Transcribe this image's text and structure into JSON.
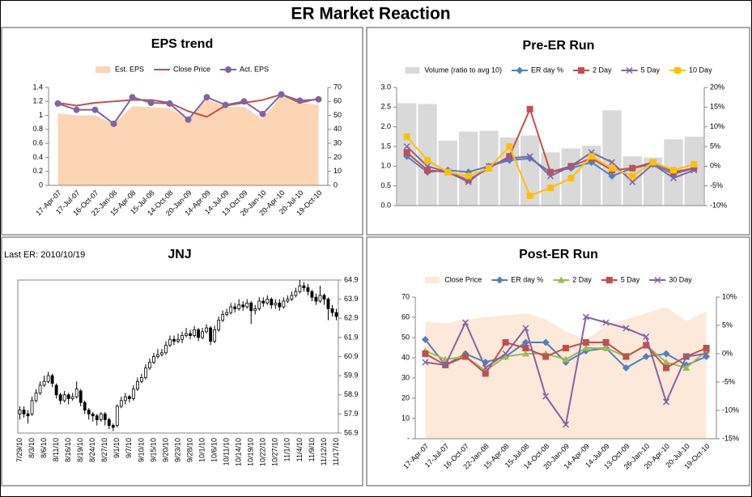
{
  "title": "ER Market Reaction",
  "chart_data": [
    {
      "type": "combo",
      "title": "EPS trend",
      "legend": "top",
      "categories": [
        "17-Apr-07",
        "17-Jul-07",
        "16-Oct-07",
        "22-Jan-08",
        "15-Apr-08",
        "15-Jul-08",
        "14-Oct-08",
        "20-Jan-09",
        "14-Apr-09",
        "14-Jul-09",
        "13-Oct-09",
        "26-Jan-10",
        "20-Apr-10",
        "20-Jul-10",
        "19-Oct-10"
      ],
      "ylim": [
        0,
        1.4
      ],
      "yticks": [
        0,
        0.2,
        0.4,
        0.6,
        0.8,
        1,
        1.2,
        1.4
      ],
      "y2lim": [
        0,
        70
      ],
      "y2ticks": [
        0,
        10,
        20,
        30,
        40,
        50,
        60,
        70
      ],
      "series": [
        {
          "name": "Est. EPS",
          "type": "area",
          "color": "#fcd5b4",
          "values": [
            1.03,
            1.0,
            1.0,
            0.88,
            1.13,
            1.12,
            1.1,
            0.95,
            1.23,
            1.13,
            1.12,
            0.95,
            1.28,
            1.18,
            1.15
          ]
        },
        {
          "name": "Close Price",
          "type": "line",
          "color": "#c0504d",
          "axis": "y2",
          "values": [
            59,
            57,
            59,
            60,
            61,
            61,
            59,
            53,
            49,
            57,
            59,
            61,
            65,
            59,
            62
          ]
        },
        {
          "name": "Act. EPS",
          "type": "line",
          "color": "#8064a2",
          "marker": "circle",
          "values": [
            1.17,
            1.08,
            1.08,
            0.88,
            1.26,
            1.18,
            1.17,
            0.94,
            1.26,
            1.15,
            1.2,
            1.02,
            1.3,
            1.21,
            1.23
          ]
        }
      ]
    },
    {
      "type": "combo",
      "title": "Pre-ER Run",
      "legend": "top",
      "ylim": [
        0,
        3
      ],
      "yticks": [
        {
          "value": 0,
          "label": "0.0"
        },
        0.5,
        {
          "value": 1,
          "label": "1.0"
        },
        1.5,
        {
          "value": 2,
          "label": "2.0"
        },
        2.5,
        {
          "value": 3,
          "label": "3.0"
        }
      ],
      "y2lim": [
        -10,
        20
      ],
      "y2ticks": [
        {
          "value": -10,
          "label": "-10%"
        },
        {
          "value": -5,
          "label": "-5%"
        },
        {
          "value": 0,
          "label": "0%"
        },
        {
          "value": 5,
          "label": "5%"
        },
        {
          "value": 10,
          "label": "10%"
        },
        {
          "value": 15,
          "label": "15%"
        },
        {
          "value": 20,
          "label": "20%"
        }
      ],
      "series": [
        {
          "name": "Volume (ratio to avg 10)",
          "type": "bar",
          "color": "#d9d9d9",
          "values": [
            2.6,
            2.58,
            1.65,
            1.88,
            1.9,
            1.73,
            1.78,
            1.35,
            1.45,
            1.52,
            2.42,
            1.25,
            1.22,
            1.68,
            1.75
          ]
        },
        {
          "name": "ER day %",
          "type": "line",
          "color": "#4f81bd",
          "marker": "diamond",
          "axis": "y2",
          "values": [
            2.5,
            -1.5,
            -1,
            -1.5,
            0,
            1.5,
            2,
            -1.5,
            -0.5,
            1,
            -2.5,
            -0.5,
            0.5,
            -2,
            -0.5
          ]
        },
        {
          "name": "2 Day",
          "type": "line",
          "color": "#c0504d",
          "marker": "square",
          "axis": "y2",
          "values": [
            3.5,
            -1,
            -1.5,
            -3.5,
            -0.5,
            2.5,
            14.5,
            -1.5,
            0,
            2,
            -1,
            -0.5,
            1,
            -1.5,
            -0.5
          ]
        },
        {
          "name": "5 Day",
          "type": "line",
          "color": "#8064a2",
          "marker": "x",
          "axis": "y2",
          "values": [
            5,
            0,
            -1.5,
            -4,
            0,
            2,
            2.5,
            -2.5,
            0,
            3.5,
            1,
            -4,
            0.5,
            -3,
            -1
          ]
        },
        {
          "name": "10 Day",
          "type": "line",
          "color": "#ffc000",
          "marker": "square",
          "axis": "y2",
          "values": [
            7.5,
            1.5,
            -1.5,
            -2.5,
            -0.5,
            5,
            -7.5,
            -5.5,
            -3,
            2.5,
            -0.5,
            -2.5,
            1,
            -1,
            0.5
          ]
        }
      ]
    },
    {
      "type": "candlestick",
      "title": "JNJ",
      "annotation": "Last ER: 2010/10/19",
      "yaxis_position": "right",
      "categories": [
        "7/29/10",
        null,
        null,
        "8/3/10",
        null,
        null,
        "8/6/10",
        null,
        null,
        "8/11/10",
        null,
        null,
        "8/16/10",
        null,
        null,
        "8/19/10",
        null,
        null,
        "8/24/10",
        null,
        null,
        "8/27/10",
        null,
        null,
        "9/1/10",
        null,
        null,
        "9/7/10",
        null,
        null,
        "9/10/10",
        null,
        null,
        "9/15/10",
        null,
        null,
        "9/20/10",
        null,
        null,
        "9/23/10",
        null,
        null,
        "9/28/10",
        null,
        null,
        "10/1/10",
        null,
        null,
        "10/6/10",
        null,
        null,
        "10/11/10",
        null,
        null,
        "10/14/10",
        null,
        null,
        "10/19/10",
        null,
        null,
        "10/22/10",
        null,
        null,
        "10/27/10",
        null,
        null,
        "11/1/10",
        null,
        null,
        "11/4/10",
        null,
        null,
        "11/9/10",
        null,
        null,
        "11/12/10",
        null,
        null,
        "11/17/10"
      ],
      "open": [
        57.9,
        58.1,
        57.9,
        57.9,
        58.6,
        59.0,
        59.4,
        59.6,
        59.9,
        59.4,
        58.9,
        58.6,
        58.9,
        58.7,
        58.8,
        59.1,
        58.5,
        58.1,
        57.9,
        57.8,
        57.6,
        57.9,
        57.6,
        57.3,
        57.3,
        58.3,
        58.6,
        58.8,
        58.7,
        59.2,
        59.6,
        59.8,
        60.3,
        60.6,
        60.9,
        61.0,
        61.1,
        61.5,
        61.8,
        61.7,
        61.8,
        62.0,
        62.1,
        62.0,
        62.3,
        61.9,
        62.2,
        62.4,
        61.7,
        62.3,
        62.8,
        63.1,
        63.2,
        63.5,
        63.4,
        63.6,
        63.5,
        63.7,
        63.3,
        63.4,
        63.8,
        63.7,
        63.9,
        63.6,
        63.7,
        63.5,
        63.8,
        63.9,
        64.1,
        64.3,
        64.6,
        64.5,
        64.3,
        64.0,
        63.8,
        64.1,
        63.9,
        63.4,
        63.2
      ],
      "high": [
        58.3,
        58.3,
        58.1,
        58.8,
        59.2,
        59.6,
        59.9,
        60.1,
        60.0,
        59.5,
        59.0,
        59.1,
        59.0,
        59.0,
        59.6,
        59.2,
        58.6,
        58.2,
        58.0,
        57.9,
        58.0,
        58.0,
        57.7,
        57.4,
        58.4,
        58.8,
        59.0,
        58.9,
        59.4,
        59.8,
        60.0,
        60.5,
        60.8,
        61.1,
        61.3,
        61.3,
        61.7,
        62.0,
        62.0,
        62.1,
        62.2,
        62.4,
        62.3,
        62.5,
        62.4,
        62.4,
        62.6,
        62.5,
        62.5,
        63.0,
        63.3,
        63.4,
        63.7,
        63.7,
        63.9,
        63.8,
        63.9,
        63.8,
        63.6,
        64.0,
        64.0,
        64.1,
        64.0,
        63.9,
        63.9,
        64.0,
        64.1,
        64.3,
        64.5,
        64.9,
        64.8,
        64.7,
        64.4,
        64.2,
        64.6,
        64.2,
        64.0,
        63.6,
        63.4
      ],
      "low": [
        57.6,
        57.7,
        57.4,
        57.8,
        58.5,
        58.9,
        59.3,
        59.5,
        59.3,
        58.7,
        58.4,
        58.5,
        58.4,
        58.6,
        58.7,
        58.3,
        57.9,
        57.6,
        57.5,
        57.3,
        57.5,
        57.3,
        57.1,
        57.0,
        57.2,
        58.2,
        58.4,
        58.5,
        58.6,
        59.1,
        59.5,
        59.7,
        60.2,
        60.5,
        60.8,
        60.9,
        61.0,
        61.4,
        61.5,
        61.6,
        61.6,
        61.9,
        61.8,
        61.9,
        61.7,
        61.8,
        62.1,
        61.5,
        61.6,
        62.2,
        62.7,
        63.0,
        63.1,
        63.2,
        63.3,
        63.3,
        63.4,
        62.6,
        63.1,
        63.3,
        63.5,
        63.6,
        63.4,
        63.4,
        63.3,
        63.4,
        63.7,
        63.8,
        64.0,
        64.2,
        64.3,
        64.1,
        63.8,
        63.6,
        63.7,
        63.6,
        62.8,
        63.0,
        62.8
      ],
      "close": [
        58.1,
        57.9,
        57.8,
        58.6,
        59.0,
        59.4,
        59.6,
        59.9,
        59.5,
        58.9,
        58.6,
        58.9,
        58.7,
        58.8,
        59.2,
        58.5,
        58.1,
        57.9,
        57.8,
        57.6,
        57.9,
        57.6,
        57.3,
        57.2,
        58.3,
        58.6,
        58.8,
        58.7,
        59.2,
        59.6,
        59.8,
        60.3,
        60.6,
        60.9,
        61.0,
        61.1,
        61.5,
        61.8,
        61.7,
        61.8,
        62.0,
        62.1,
        62.0,
        62.3,
        61.9,
        62.2,
        62.4,
        61.7,
        62.3,
        62.8,
        63.1,
        63.2,
        63.5,
        63.4,
        63.6,
        63.5,
        63.7,
        63.3,
        63.4,
        63.8,
        63.7,
        63.9,
        63.6,
        63.7,
        63.5,
        63.8,
        63.9,
        64.1,
        64.3,
        64.6,
        64.5,
        64.3,
        64.0,
        63.8,
        64.1,
        63.9,
        63.4,
        63.2,
        63.0
      ],
      "ylim": [
        56.9,
        64.9
      ],
      "yticks": [
        56.9,
        57.9,
        58.9,
        59.9,
        60.9,
        61.9,
        62.9,
        63.9,
        64.9
      ]
    },
    {
      "type": "combo",
      "title": "Post-ER Run",
      "legend": "top",
      "categories": [
        "17-Apr-07",
        "17-Jul-07",
        "16-Oct-07",
        "22-Jan-08",
        "15-Apr-08",
        "15-Jul-08",
        "14-Oct-08",
        "20-Jan-09",
        "14-Apr-09",
        "14-Jul-09",
        "13-Oct-09",
        "26-Jan-10",
        "20-Apr-10",
        "20-Jul-10",
        "19-Oct-10"
      ],
      "ylim": [
        0,
        70
      ],
      "yticks": [
        {
          "value": 0,
          "label": "-"
        },
        10,
        20,
        30,
        40,
        50,
        60,
        70
      ],
      "y2lim": [
        -15,
        10
      ],
      "y2ticks": [
        {
          "value": -15,
          "label": "-15%"
        },
        {
          "value": -10,
          "label": "-10%"
        },
        {
          "value": -5,
          "label": "-5%"
        },
        {
          "value": 0,
          "label": "0%"
        },
        {
          "value": 5,
          "label": "5%"
        },
        {
          "value": 10,
          "label": "10%"
        }
      ],
      "series": [
        {
          "name": "Close Price",
          "type": "area",
          "color": "#fde9d9",
          "values": [
            58,
            57,
            59,
            60,
            61,
            62,
            59,
            53,
            49,
            56,
            59,
            62,
            65,
            58,
            63
          ]
        },
        {
          "name": "ER day %",
          "type": "line",
          "color": "#4f81bd",
          "marker": "diamond",
          "axis": "y2",
          "values": [
            2.5,
            -2,
            0,
            -1.5,
            -0.5,
            2,
            2,
            -1.5,
            0.5,
            1,
            -2.5,
            -0.5,
            0,
            -2,
            -0.5
          ]
        },
        {
          "name": "2 Day",
          "type": "line",
          "color": "#9bbb59",
          "marker": "triangle",
          "axis": "y2",
          "values": [
            0.5,
            -1,
            -0.5,
            -3,
            -0.5,
            0,
            0,
            -1,
            1,
            1,
            -0.5,
            1.5,
            -1.5,
            -2.5,
            0.5
          ]
        },
        {
          "name": "5 Day",
          "type": "line",
          "color": "#c0504d",
          "marker": "square",
          "axis": "y2",
          "values": [
            0,
            -2,
            -0.5,
            -3.5,
            2,
            1,
            -0.5,
            1,
            2,
            2,
            -0.5,
            1.5,
            -2.5,
            -0.5,
            1
          ]
        },
        {
          "name": "30 Day",
          "type": "line",
          "color": "#8064a2",
          "marker": "x",
          "axis": "y2",
          "values": [
            -1.5,
            -2,
            5.5,
            -2.5,
            0,
            4.5,
            -7.5,
            -12.5,
            6.5,
            5.5,
            4.5,
            3,
            -8.5,
            -0.5,
            0
          ]
        }
      ]
    }
  ]
}
